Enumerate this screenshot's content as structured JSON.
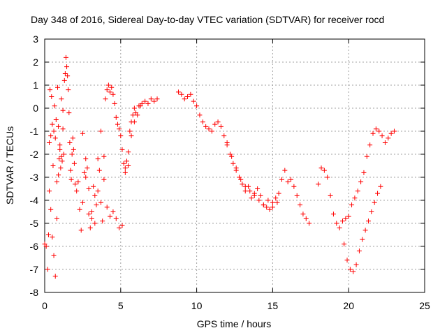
{
  "chart_data": {
    "type": "scatter",
    "title": "Day 348 of 2016, Sidereal Day-to-day VTEC variation (SDTVAR) for receiver rocd",
    "xlabel": "GPS time / hours",
    "ylabel": "SDTVAR / TECUs",
    "xlim": [
      0,
      25
    ],
    "ylim": [
      -8,
      3
    ],
    "xticks": [
      0,
      5,
      10,
      15,
      20,
      25
    ],
    "yticks": [
      -8,
      -7,
      -6,
      -5,
      -4,
      -3,
      -2,
      -1,
      0,
      1,
      2,
      3
    ],
    "grid": true,
    "marker": "+",
    "color": "#ff0000",
    "series": [
      {
        "name": "SDTVAR",
        "x": [
          0.0,
          0.1,
          0.2,
          0.25,
          0.3,
          0.35,
          0.4,
          0.45,
          0.5,
          0.55,
          0.6,
          0.65,
          0.7,
          0.75,
          0.8,
          0.85,
          0.9,
          0.95,
          1.0,
          1.05,
          1.1,
          1.15,
          1.2,
          1.25,
          1.3,
          1.35,
          1.4,
          1.45,
          1.5,
          1.55,
          1.6,
          1.65,
          1.7,
          1.75,
          1.8,
          1.85,
          1.9,
          1.95,
          2.0,
          2.1,
          2.2,
          2.3,
          2.4,
          2.5,
          2.6,
          2.7,
          2.8,
          2.9,
          3.0,
          3.1,
          3.2,
          3.3,
          3.4,
          3.5,
          3.6,
          3.7,
          3.8,
          3.9,
          4.0,
          4.1,
          4.2,
          4.3,
          4.4,
          4.5,
          4.6,
          4.7,
          4.8,
          4.9,
          5.0,
          5.1,
          5.2,
          5.3,
          5.4,
          5.5,
          5.6,
          5.7,
          5.8,
          5.9,
          6.0,
          6.2,
          6.4,
          6.6,
          6.8,
          7.0,
          7.2,
          7.4,
          0.3,
          0.4,
          0.5,
          0.6,
          0.7,
          0.8,
          0.9,
          1.0,
          1.1,
          1.2,
          2.5,
          2.7,
          2.9,
          3.1,
          3.3,
          3.5,
          3.7,
          3.9,
          4.1,
          4.3,
          4.5,
          4.7,
          4.9,
          5.1,
          5.3,
          5.5,
          5.7,
          5.9,
          6.1,
          6.3,
          8.8,
          9.0,
          9.2,
          9.4,
          9.6,
          9.8,
          10.0,
          10.2,
          10.4,
          10.6,
          10.8,
          11.0,
          11.2,
          11.4,
          11.6,
          11.8,
          12.0,
          12.2,
          12.4,
          12.6,
          12.8,
          13.0,
          13.2,
          13.4,
          13.6,
          13.8,
          14.0,
          14.2,
          14.4,
          14.6,
          14.8,
          15.0,
          15.2,
          15.4,
          15.6,
          15.8,
          16.0,
          16.2,
          16.4,
          16.6,
          16.8,
          17.0,
          17.2,
          17.4,
          12.0,
          12.3,
          12.6,
          12.9,
          13.2,
          13.5,
          13.8,
          14.1,
          14.4,
          14.7,
          15.0,
          15.3,
          18.0,
          18.2,
          18.4,
          18.6,
          18.8,
          19.0,
          19.2,
          19.4,
          19.6,
          19.8,
          20.0,
          20.2,
          20.4,
          20.6,
          20.8,
          21.0,
          21.2,
          21.4,
          21.6,
          21.8,
          22.0,
          22.2,
          22.4,
          22.6,
          22.8,
          23.0,
          19.7,
          19.9,
          20.1,
          20.3,
          20.5,
          20.7,
          20.9,
          21.1,
          21.3,
          21.5,
          21.7,
          21.9,
          22.1
        ],
        "y": [
          -5.9,
          -6.0,
          -7.0,
          -5.5,
          -1.5,
          0.8,
          -1.2,
          0.5,
          -0.7,
          -2.5,
          -1.0,
          0.1,
          -1.3,
          -0.5,
          -3.2,
          0.9,
          -0.8,
          -2.2,
          -1.8,
          -2.6,
          -2.1,
          -2.3,
          -0.9,
          -2.0,
          1.2,
          1.5,
          2.2,
          1.8,
          1.4,
          0.8,
          -0.2,
          -1.5,
          -2.7,
          -3.1,
          -2.0,
          -1.3,
          -1.8,
          -2.4,
          -3.3,
          -3.6,
          -3.2,
          -4.4,
          -5.3,
          -4.1,
          -2.8,
          -3.0,
          -2.6,
          -4.6,
          -5.2,
          -4.8,
          -3.4,
          -3.8,
          -4.2,
          -3.6,
          -2.7,
          -4.1,
          -4.9,
          -2.1,
          0.4,
          0.8,
          1.0,
          0.7,
          0.9,
          0.6,
          0.2,
          -0.4,
          -0.7,
          -0.9,
          -1.2,
          -1.8,
          -2.4,
          -2.6,
          -2.3,
          -1.9,
          -1.0,
          -0.6,
          -0.3,
          0.0,
          -0.2,
          0.1,
          0.2,
          0.3,
          0.2,
          0.4,
          0.3,
          0.4,
          -3.6,
          -4.4,
          -5.6,
          -6.4,
          -7.3,
          -4.8,
          -2.9,
          -1.6,
          0.4,
          -0.1,
          -1.1,
          -2.2,
          -3.5,
          -4.5,
          -5.0,
          -2.2,
          -1.0,
          -3.1,
          -4.3,
          -4.7,
          -4.5,
          -4.8,
          -5.2,
          -5.1,
          -2.8,
          -2.5,
          -1.2,
          -0.6,
          -0.3,
          0.1,
          0.7,
          0.6,
          0.4,
          0.5,
          0.6,
          0.3,
          0.1,
          -0.3,
          -0.6,
          -0.8,
          -0.9,
          -1.0,
          -0.7,
          -0.6,
          -0.8,
          -1.2,
          -1.6,
          -2.0,
          -2.4,
          -2.7,
          -3.0,
          -3.3,
          -3.6,
          -3.4,
          -3.9,
          -3.7,
          -3.5,
          -3.8,
          -4.2,
          -4.3,
          -4.4,
          -4.1,
          -3.9,
          -3.7,
          -3.1,
          -2.7,
          -3.2,
          -3.1,
          -3.4,
          -3.8,
          -4.2,
          -4.6,
          -4.8,
          -5.0,
          -1.5,
          -2.1,
          -2.6,
          -3.1,
          -3.4,
          -3.6,
          -3.8,
          -4.0,
          -4.2,
          -4.0,
          -4.3,
          -4.1,
          -3.3,
          -2.6,
          -2.7,
          -3.0,
          -3.8,
          -4.6,
          -5.0,
          -5.2,
          -4.9,
          -4.8,
          -4.7,
          -4.2,
          -3.9,
          -3.6,
          -3.2,
          -2.8,
          -2.1,
          -1.6,
          -1.1,
          -0.9,
          -1.0,
          -1.2,
          -1.5,
          -1.3,
          -1.1,
          -1.0,
          -5.9,
          -6.6,
          -7.0,
          -7.1,
          -6.8,
          -6.2,
          -5.7,
          -5.3,
          -4.9,
          -4.5,
          -4.1,
          -3.7,
          -3.4
        ]
      }
    ]
  }
}
